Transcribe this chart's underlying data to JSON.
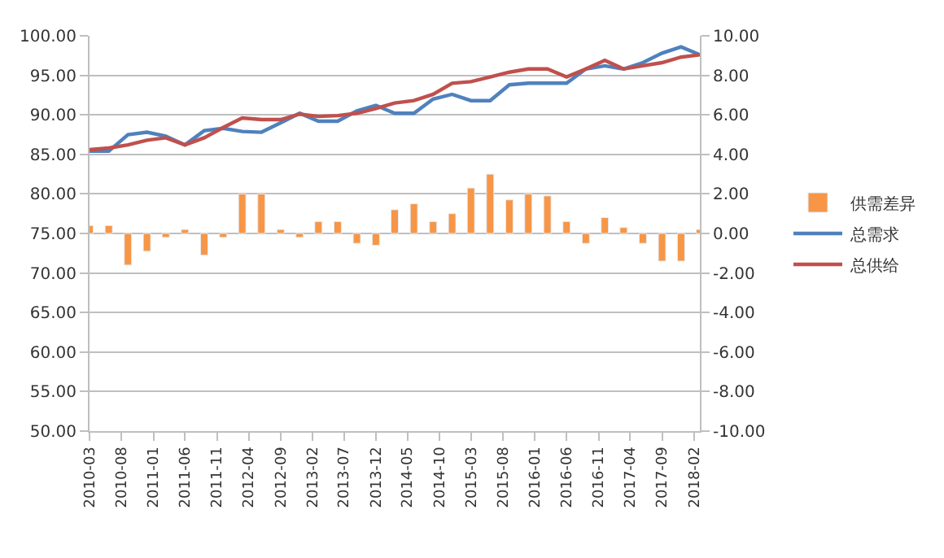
{
  "chart_data": {
    "type": "line",
    "x": [
      "2010-03",
      "2010-06",
      "2010-09",
      "2010-12",
      "2011-03",
      "2011-06",
      "2011-09",
      "2011-12",
      "2012-03",
      "2012-06",
      "2012-09",
      "2012-12",
      "2013-03",
      "2013-06",
      "2013-09",
      "2013-12",
      "2014-03",
      "2014-06",
      "2014-09",
      "2014-12",
      "2015-03",
      "2015-06",
      "2015-09",
      "2015-12",
      "2016-03",
      "2016-06",
      "2016-09",
      "2016-12",
      "2017-03",
      "2017-06",
      "2017-09",
      "2017-12",
      "2018-03"
    ],
    "series": [
      {
        "name": "供需差异",
        "type": "bar",
        "axis": "y2",
        "color": "#f79646",
        "values": [
          0.4,
          0.4,
          -1.6,
          -0.9,
          -0.2,
          0.2,
          -1.1,
          -0.2,
          2.0,
          2.0,
          0.2,
          -0.2,
          0.6,
          0.6,
          -0.5,
          -0.6,
          1.2,
          1.5,
          0.6,
          1.0,
          2.3,
          3.0,
          1.7,
          2.0,
          1.9,
          0.6,
          -0.5,
          0.8,
          0.3,
          -0.5,
          -1.4,
          -1.4,
          0.2
        ]
      },
      {
        "name": "总需求",
        "color": "#4f81bd",
        "values": [
          85.4,
          85.4,
          87.5,
          87.8,
          87.3,
          86.2,
          88.0,
          88.3,
          87.9,
          87.8,
          89.0,
          90.2,
          89.2,
          89.2,
          90.5,
          91.2,
          90.2,
          90.2,
          92.0,
          92.6,
          91.8,
          91.8,
          93.8,
          94.0,
          94.0,
          94.0,
          95.8,
          96.2,
          95.8,
          96.6,
          97.8,
          98.6,
          97.6
        ]
      },
      {
        "name": "总供给",
        "color": "#c0504d",
        "values": [
          85.6,
          85.8,
          86.2,
          86.8,
          87.1,
          86.2,
          87.1,
          88.4,
          89.6,
          89.4,
          89.4,
          90.1,
          89.8,
          89.9,
          90.2,
          90.8,
          91.5,
          91.8,
          92.6,
          94.0,
          94.2,
          94.8,
          95.4,
          95.8,
          95.8,
          94.8,
          95.8,
          96.9,
          95.8,
          96.2,
          96.6,
          97.3,
          97.6
        ]
      }
    ],
    "xlim": [
      "2010-03",
      "2018-03"
    ],
    "xticks": [
      "2010-03",
      "2010-08",
      "2011-01",
      "2011-06",
      "2011-11",
      "2012-04",
      "2012-09",
      "2013-02",
      "2013-07",
      "2013-12",
      "2014-05",
      "2014-10",
      "2015-03",
      "2015-08",
      "2016-01",
      "2016-06",
      "2016-11",
      "2017-04",
      "2017-09",
      "2018-02"
    ],
    "ylim": [
      50,
      100
    ],
    "yticks": [
      {
        "value": 50,
        "label": "50.00"
      },
      {
        "value": 55,
        "label": "55.00"
      },
      {
        "value": 60,
        "label": "60.00"
      },
      {
        "value": 65,
        "label": "65.00"
      },
      {
        "value": 70,
        "label": "70.00"
      },
      {
        "value": 75,
        "label": "75.00"
      },
      {
        "value": 80,
        "label": "80.00"
      },
      {
        "value": 85,
        "label": "85.00"
      },
      {
        "value": 90,
        "label": "90.00"
      },
      {
        "value": 95,
        "label": "95.00"
      },
      {
        "value": 100,
        "label": "100.00"
      }
    ],
    "y2lim": [
      -10,
      10
    ],
    "y2ticks": [
      {
        "value": -10,
        "label": "-10.00"
      },
      {
        "value": -8,
        "label": "-8.00"
      },
      {
        "value": -6,
        "label": "-6.00"
      },
      {
        "value": -4,
        "label": "-4.00"
      },
      {
        "value": -2,
        "label": "-2.00"
      },
      {
        "value": 0,
        "label": "0.00"
      },
      {
        "value": 2,
        "label": "2.00"
      },
      {
        "value": 4,
        "label": "4.00"
      },
      {
        "value": 6,
        "label": "6.00"
      },
      {
        "value": 8,
        "label": "8.00"
      },
      {
        "value": 10,
        "label": "10.00"
      }
    ],
    "grid": "y",
    "legend": "right",
    "marker": "none",
    "line_style": "solid"
  }
}
